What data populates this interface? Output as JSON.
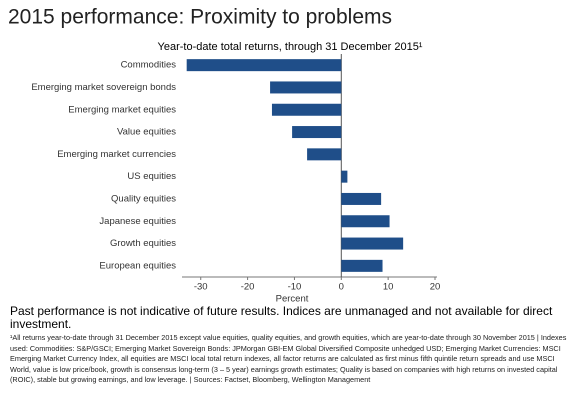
{
  "chart_data": {
    "type": "bar",
    "orientation": "horizontal",
    "title": "2015 performance: Proximity to problems",
    "subtitle": "Year-to-date total returns, through 31 December 2015¹",
    "x_label": "Percent",
    "categories": [
      "Commodities",
      "Emerging market sovereign bonds",
      "Emerging market equities",
      "Value equities",
      "Emerging market currencies",
      "US equities",
      "Quality equities",
      "Japanese equities",
      "Growth equities",
      "European equities"
    ],
    "values": [
      -33,
      -15.2,
      -14.8,
      -10.5,
      -7.3,
      1.3,
      8.5,
      10.3,
      13.2,
      8.8
    ],
    "color": "#1f4e89",
    "xlim": [
      -34,
      20
    ],
    "xticks": [
      -30,
      -20,
      -10,
      0,
      10,
      20
    ]
  },
  "disclaimer": "Past performance is not indicative of future results. Indices are unmanaged and not available for direct investment.",
  "footnote": "¹All returns year-to-date through 31 December 2015 except value equities, quality equities, and growth equities, which are year-to-date through 30 November 2015 | Indexes used: Commodities: S&P/GSCI; Emerging Market Sovereign Bonds: JPMorgan GBI-EM Global Diversified Composite unhedged USD; Emerging Market Currencies: MSCI Emerging Market Currency Index, all equities are MSCI local total return indexes, all factor returns are calculated as first minus fifth quintile return spreads and use MSCI World, value is low price/book, growth is consensus long-term (3 – 5 year) earnings growth estimates; Quality is based on companies with high returns on invested capital (ROIC), stable but growing earnings, and low leverage. | Sources: Factset, Bloomberg, Wellington Management"
}
